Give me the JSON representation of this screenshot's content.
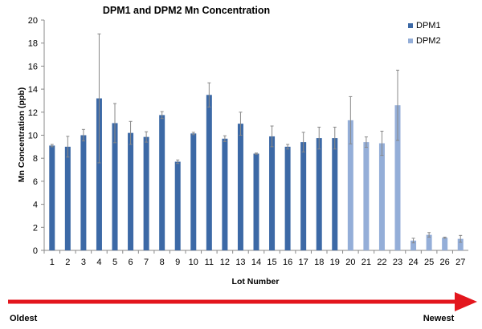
{
  "chart_data": {
    "type": "bar",
    "title": "DPM1 and DPM2 Mn Concentration",
    "xlabel": "Lot Number",
    "ylabel": "Mn Concentration (ppb)",
    "ylim": [
      0,
      20
    ],
    "yticks": [
      0,
      2,
      4,
      6,
      8,
      10,
      12,
      14,
      16,
      18,
      20
    ],
    "grid": false,
    "legend_position": "top-right",
    "categories": [
      "1",
      "2",
      "3",
      "4",
      "5",
      "6",
      "7",
      "8",
      "9",
      "10",
      "11",
      "12",
      "13",
      "14",
      "15",
      "16",
      "17",
      "18",
      "19",
      "20",
      "21",
      "22",
      "23",
      "24",
      "25",
      "26",
      "27"
    ],
    "series": [
      {
        "name": "DPM1",
        "color": "#3c69a6",
        "values": [
          9.1,
          9.0,
          10.0,
          13.2,
          11.05,
          10.2,
          9.85,
          11.75,
          7.7,
          10.15,
          13.5,
          9.7,
          11.0,
          8.4,
          9.9,
          9.0,
          9.4,
          9.75,
          9.75,
          null,
          null,
          null,
          null,
          null,
          null,
          null,
          null
        ],
        "errors": [
          0.1,
          0.9,
          0.5,
          5.6,
          1.7,
          1.0,
          0.45,
          0.3,
          0.15,
          0.1,
          1.05,
          0.25,
          1.0,
          0.05,
          0.9,
          0.2,
          0.85,
          0.95,
          0.95,
          null,
          null,
          null,
          null,
          null,
          null,
          null,
          null
        ]
      },
      {
        "name": "DPM2",
        "color": "#94aed8",
        "values": [
          null,
          null,
          null,
          null,
          null,
          null,
          null,
          null,
          null,
          null,
          null,
          null,
          null,
          null,
          null,
          null,
          null,
          null,
          null,
          11.3,
          9.4,
          9.3,
          12.6,
          0.85,
          1.35,
          1.1,
          1.0
        ],
        "errors": [
          null,
          null,
          null,
          null,
          null,
          null,
          null,
          null,
          null,
          null,
          null,
          null,
          null,
          null,
          null,
          null,
          null,
          null,
          null,
          2.05,
          0.45,
          1.05,
          3.05,
          0.2,
          0.2,
          0.05,
          0.3
        ]
      }
    ]
  },
  "timeline": {
    "start_label": "Oldest",
    "end_label": "Newest",
    "arrow_color": "#e3161d"
  }
}
